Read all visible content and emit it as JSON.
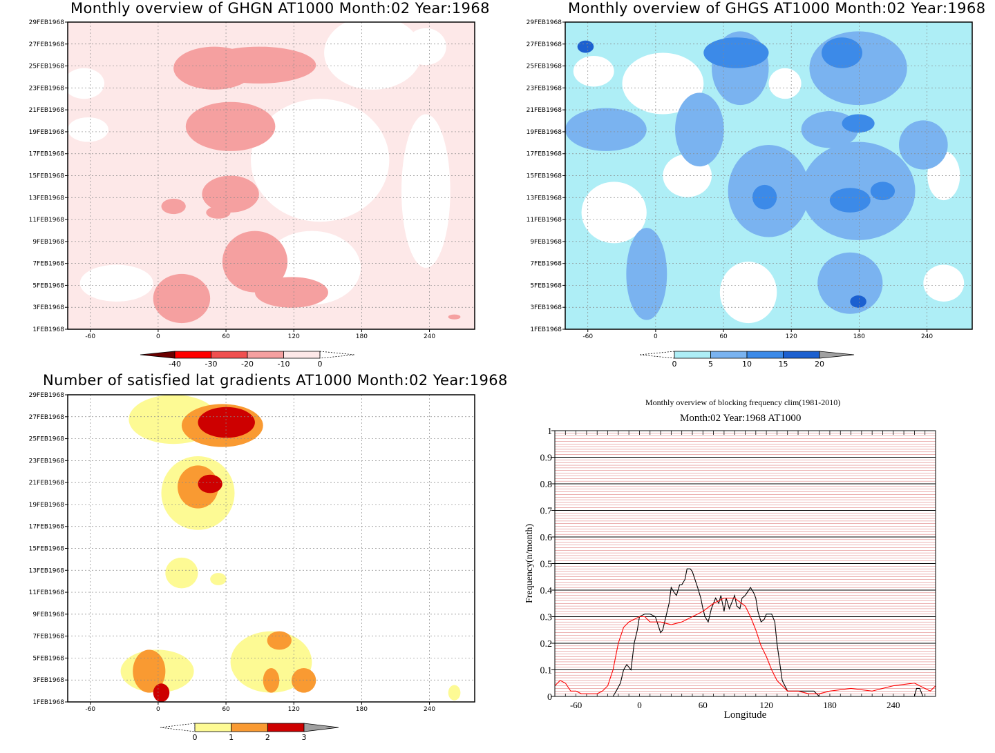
{
  "chart_data": [
    {
      "id": "ghgn",
      "type": "heatmap",
      "title": "Monthly overview of GHGN AT1000 Month:02 Year:1968",
      "x_ticks": [
        "-60",
        "0",
        "60",
        "120",
        "180",
        "240"
      ],
      "y_ticks": [
        "1FEB1968",
        "3FEB1968",
        "5FEB1968",
        "7FEB1968",
        "9FEB1968",
        "11FEB1968",
        "13FEB1968",
        "15FEB1968",
        "17FEB1968",
        "19FEB1968",
        "21FEB1968",
        "23FEB1968",
        "25FEB1968",
        "27FEB1968",
        "29FEB1968"
      ],
      "xlim": [
        -80,
        280
      ],
      "grid": true,
      "colorbar": {
        "levels": [
          "-40",
          "-30",
          "-20",
          "-10",
          "0"
        ],
        "colors": [
          "#6b0000",
          "#ff0000",
          "#f05050",
          "#f5a0a0",
          "#fde8e8"
        ],
        "ends": [
          "triangle-dark",
          "triangle-dashed"
        ]
      }
    },
    {
      "id": "ghgs",
      "type": "heatmap",
      "title": "Monthly overview of GHGS AT1000 Month:02 Year:1968",
      "x_ticks": [
        "-60",
        "0",
        "60",
        "120",
        "180",
        "240"
      ],
      "y_ticks": [
        "1FEB1968",
        "3FEB1968",
        "5FEB1968",
        "7FEB1968",
        "9FEB1968",
        "11FEB1968",
        "13FEB1968",
        "15FEB1968",
        "17FEB1968",
        "19FEB1968",
        "21FEB1968",
        "23FEB1968",
        "25FEB1968",
        "27FEB1968",
        "29FEB1968"
      ],
      "xlim": [
        -80,
        280
      ],
      "grid": true,
      "colorbar": {
        "levels": [
          "0",
          "5",
          "10",
          "15",
          "20"
        ],
        "colors": [
          "#aeeef6",
          "#7ab3f0",
          "#3c8ae8",
          "#1c60d0"
        ],
        "ends": [
          "triangle-dashed",
          "triangle-gray"
        ]
      }
    },
    {
      "id": "lat",
      "type": "heatmap",
      "title": "Number of satisfied lat gradients AT1000 Month:02 Year:1968",
      "x_ticks": [
        "-60",
        "0",
        "60",
        "120",
        "180",
        "240"
      ],
      "y_ticks": [
        "1FEB1968",
        "3FEB1968",
        "5FEB1968",
        "7FEB1968",
        "9FEB1968",
        "11FEB1968",
        "13FEB1968",
        "15FEB1968",
        "17FEB1968",
        "19FEB1968",
        "21FEB1968",
        "23FEB1968",
        "25FEB1968",
        "27FEB1968",
        "29FEB1968"
      ],
      "xlim": [
        -80,
        280
      ],
      "grid": true,
      "colorbar": {
        "levels": [
          "0",
          "1",
          "2",
          "3"
        ],
        "colors": [
          "#fdfa94",
          "#f99a32",
          "#cd0000"
        ],
        "ends": [
          "triangle-dashed",
          "triangle-gray"
        ]
      }
    },
    {
      "id": "freq",
      "type": "line",
      "title": "Monthly overview of blocking frequency clim(1981-2010)",
      "subtitle": "Month:02 Year:1968  AT1000",
      "xlabel": "Longitude",
      "ylabel": "Frequency(n/month)",
      "x_ticks": [
        "-60",
        "0",
        "60",
        "120",
        "180",
        "240"
      ],
      "y_ticks": [
        "0",
        "0.1",
        "0.2",
        "0.3",
        "0.4",
        "0.5",
        "0.6",
        "0.7",
        "0.8",
        "0.9",
        "1"
      ],
      "xlim": [
        -80,
        280
      ],
      "ylim": [
        0,
        1
      ],
      "series": [
        {
          "color": "#000000",
          "x": [
            -80,
            -25,
            -22,
            -18,
            -15,
            -12,
            -8,
            -5,
            -2,
            0,
            5,
            10,
            15,
            20,
            22,
            25,
            28,
            30,
            33,
            35,
            38,
            40,
            43,
            45,
            48,
            50,
            55,
            58,
            60,
            62,
            65,
            68,
            70,
            72,
            75,
            77,
            80,
            82,
            85,
            87,
            90,
            92,
            95,
            97,
            100,
            105,
            108,
            110,
            112,
            115,
            118,
            120,
            125,
            128,
            130,
            135,
            140,
            145,
            160,
            165,
            170,
            180,
            200,
            230,
            260,
            262,
            265,
            268,
            280
          ],
          "y": [
            0,
            0,
            0.02,
            0.05,
            0.1,
            0.12,
            0.1,
            0.2,
            0.25,
            0.3,
            0.31,
            0.31,
            0.3,
            0.24,
            0.25,
            0.3,
            0.35,
            0.41,
            0.39,
            0.38,
            0.42,
            0.42,
            0.44,
            0.48,
            0.48,
            0.47,
            0.41,
            0.37,
            0.33,
            0.3,
            0.28,
            0.33,
            0.35,
            0.37,
            0.35,
            0.38,
            0.32,
            0.37,
            0.33,
            0.35,
            0.38,
            0.34,
            0.33,
            0.37,
            0.38,
            0.41,
            0.39,
            0.37,
            0.32,
            0.28,
            0.29,
            0.31,
            0.31,
            0.28,
            0.2,
            0.06,
            0.02,
            0.02,
            0.02,
            0.02,
            0,
            0,
            0,
            0,
            0,
            0.03,
            0.03,
            0,
            0
          ]
        },
        {
          "color": "#ff0000",
          "x": [
            -80,
            -75,
            -70,
            -65,
            -60,
            -55,
            -50,
            -40,
            -35,
            -30,
            -25,
            -20,
            -15,
            -10,
            -5,
            0,
            5,
            10,
            20,
            30,
            40,
            50,
            60,
            70,
            80,
            90,
            100,
            105,
            110,
            115,
            120,
            125,
            130,
            140,
            150,
            160,
            170,
            180,
            200,
            220,
            240,
            260,
            270,
            275,
            280
          ],
          "y": [
            0.04,
            0.06,
            0.05,
            0.02,
            0.02,
            0.01,
            0.01,
            0.01,
            0.02,
            0.04,
            0.1,
            0.2,
            0.26,
            0.28,
            0.29,
            0.3,
            0.3,
            0.28,
            0.28,
            0.27,
            0.28,
            0.3,
            0.32,
            0.35,
            0.37,
            0.37,
            0.34,
            0.3,
            0.25,
            0.19,
            0.15,
            0.1,
            0.06,
            0.02,
            0.02,
            0.01,
            0.01,
            0.02,
            0.03,
            0.02,
            0.04,
            0.05,
            0.03,
            0.02,
            0.04
          ]
        }
      ]
    }
  ]
}
